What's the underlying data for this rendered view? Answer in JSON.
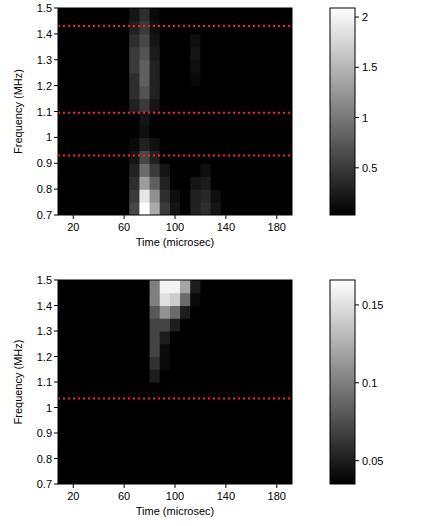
{
  "chart_data": [
    {
      "type": "heatmap",
      "xlabel": "Time (microsec)",
      "ylabel": "Frequency (MHz)",
      "x": [
        12,
        20,
        28,
        36,
        44,
        52,
        60,
        68,
        76,
        84,
        92,
        100,
        108,
        116,
        124,
        132,
        140,
        148,
        156,
        164,
        172,
        180,
        188
      ],
      "y": [
        0.725,
        0.775,
        0.825,
        0.875,
        0.925,
        0.975,
        1.025,
        1.075,
        1.125,
        1.175,
        1.225,
        1.275,
        1.325,
        1.375,
        1.425,
        1.475
      ],
      "cells": [
        [
          0,
          0,
          0,
          0,
          0,
          0,
          0,
          0.6,
          2.09,
          1.4,
          0.5,
          0.2,
          0,
          0.3,
          0.4,
          0.2,
          0,
          0,
          0,
          0,
          0,
          0,
          0
        ],
        [
          0,
          0,
          0,
          0,
          0,
          0,
          0,
          0.5,
          1.9,
          1.2,
          0.4,
          0.15,
          0,
          0.3,
          0.35,
          0.15,
          0,
          0,
          0,
          0,
          0,
          0,
          0
        ],
        [
          0,
          0,
          0,
          0,
          0,
          0,
          0,
          0.4,
          1.3,
          0.8,
          0.3,
          0,
          0,
          0.2,
          0.25,
          0,
          0,
          0,
          0,
          0,
          0,
          0,
          0
        ],
        [
          0,
          0,
          0,
          0,
          0,
          0,
          0,
          0.3,
          0.9,
          0.5,
          0.2,
          0,
          0,
          0,
          0.15,
          0,
          0,
          0,
          0,
          0,
          0,
          0,
          0
        ],
        [
          0,
          0,
          0,
          0,
          0,
          0,
          0,
          0.2,
          0.6,
          0.3,
          0,
          0,
          0,
          0,
          0,
          0,
          0,
          0,
          0,
          0,
          0,
          0,
          0
        ],
        [
          0,
          0,
          0,
          0,
          0,
          0,
          0,
          0.1,
          0.3,
          0.15,
          0,
          0,
          0,
          0,
          0,
          0,
          0,
          0,
          0,
          0,
          0,
          0,
          0
        ],
        [
          0,
          0,
          0,
          0,
          0,
          0,
          0,
          0,
          0.15,
          0,
          0,
          0,
          0,
          0,
          0,
          0,
          0,
          0,
          0,
          0,
          0,
          0,
          0
        ],
        [
          0,
          0,
          0,
          0,
          0,
          0,
          0,
          0,
          0.2,
          0,
          0,
          0,
          0,
          0,
          0,
          0,
          0,
          0,
          0,
          0,
          0,
          0,
          0
        ],
        [
          0,
          0,
          0,
          0,
          0,
          0,
          0,
          0.3,
          0.5,
          0.2,
          0,
          0,
          0,
          0,
          0,
          0,
          0,
          0,
          0,
          0,
          0,
          0,
          0
        ],
        [
          0,
          0,
          0,
          0,
          0,
          0,
          0,
          0.4,
          0.7,
          0.3,
          0,
          0,
          0,
          0,
          0,
          0,
          0,
          0,
          0,
          0,
          0,
          0,
          0
        ],
        [
          0,
          0,
          0,
          0,
          0,
          0,
          0,
          0.4,
          0.8,
          0.3,
          0,
          0,
          0,
          0.1,
          0,
          0,
          0,
          0,
          0,
          0,
          0,
          0,
          0
        ],
        [
          0,
          0,
          0,
          0,
          0,
          0,
          0,
          0.5,
          0.8,
          0.3,
          0,
          0,
          0,
          0.15,
          0,
          0,
          0,
          0,
          0,
          0,
          0,
          0,
          0
        ],
        [
          0,
          0,
          0,
          0,
          0,
          0,
          0,
          0.5,
          0.7,
          0.25,
          0,
          0,
          0,
          0.2,
          0,
          0,
          0,
          0,
          0,
          0,
          0,
          0,
          0
        ],
        [
          0,
          0,
          0,
          0,
          0,
          0,
          0,
          0.4,
          0.6,
          0.2,
          0,
          0,
          0,
          0.15,
          0,
          0,
          0,
          0,
          0,
          0,
          0,
          0,
          0
        ],
        [
          0,
          0,
          0,
          0,
          0,
          0,
          0,
          0.3,
          0.5,
          0.15,
          0,
          0,
          0,
          0,
          0,
          0,
          0,
          0,
          0,
          0,
          0,
          0,
          0
        ],
        [
          0,
          0,
          0,
          0,
          0,
          0,
          0,
          0.2,
          0.4,
          0.1,
          0,
          0,
          0,
          0,
          0,
          0,
          0,
          0,
          0,
          0,
          0,
          0,
          0
        ]
      ],
      "xlim": [
        8,
        192
      ],
      "ylim": [
        0.7,
        1.5
      ],
      "xticks": [
        20,
        60,
        100,
        140,
        180
      ],
      "yticks": [
        0.7,
        0.8,
        0.9,
        1,
        1.1,
        1.2,
        1.3,
        1.4,
        1.5
      ],
      "color_range": [
        0.03,
        2.09
      ],
      "color_ticks": [
        0.5,
        1,
        1.5,
        2
      ],
      "hlines": [
        1.43,
        1.095,
        0.93
      ]
    },
    {
      "type": "heatmap",
      "xlabel": "Time (microsec)",
      "ylabel": "Frequency (MHz)",
      "x": [
        12,
        20,
        28,
        36,
        44,
        52,
        60,
        68,
        76,
        84,
        92,
        100,
        108,
        116,
        124,
        132,
        140,
        148,
        156,
        164,
        172,
        180,
        188
      ],
      "y": [
        0.725,
        0.775,
        0.825,
        0.875,
        0.925,
        0.975,
        1.025,
        1.075,
        1.125,
        1.175,
        1.225,
        1.275,
        1.325,
        1.375,
        1.425,
        1.475
      ],
      "cells": [
        [
          0,
          0,
          0,
          0,
          0,
          0,
          0,
          0,
          0,
          0,
          0,
          0,
          0,
          0.02,
          0,
          0,
          0,
          0,
          0,
          0,
          0,
          0,
          0
        ],
        [
          0,
          0,
          0,
          0,
          0,
          0,
          0,
          0,
          0,
          0,
          0,
          0,
          0,
          0,
          0,
          0,
          0,
          0,
          0,
          0,
          0,
          0,
          0
        ],
        [
          0,
          0,
          0,
          0,
          0,
          0,
          0,
          0,
          0,
          0,
          0,
          0,
          0,
          0,
          0,
          0,
          0,
          0,
          0,
          0,
          0,
          0,
          0
        ],
        [
          0,
          0,
          0,
          0,
          0,
          0,
          0,
          0,
          0,
          0,
          0,
          0,
          0,
          0,
          0,
          0,
          0,
          0,
          0,
          0,
          0,
          0,
          0
        ],
        [
          0,
          0,
          0,
          0,
          0,
          0,
          0,
          0,
          0,
          0,
          0,
          0,
          0,
          0,
          0,
          0,
          0,
          0,
          0,
          0,
          0,
          0,
          0
        ],
        [
          0,
          0,
          0,
          0,
          0,
          0,
          0,
          0,
          0,
          0,
          0,
          0,
          0,
          0,
          0,
          0,
          0,
          0,
          0,
          0,
          0,
          0,
          0
        ],
        [
          0,
          0,
          0,
          0,
          0,
          0,
          0,
          0,
          0,
          0,
          0,
          0,
          0,
          0,
          0,
          0,
          0,
          0,
          0,
          0,
          0,
          0,
          0
        ],
        [
          0,
          0,
          0,
          0,
          0,
          0,
          0,
          0,
          0,
          0.02,
          0.02,
          0,
          0,
          0,
          0,
          0,
          0,
          0,
          0,
          0,
          0,
          0,
          0
        ],
        [
          0,
          0,
          0,
          0,
          0,
          0,
          0,
          0,
          0,
          0.05,
          0.03,
          0,
          0,
          0,
          0,
          0,
          0,
          0,
          0,
          0.02,
          0,
          0,
          0
        ],
        [
          0,
          0,
          0,
          0,
          0,
          0,
          0,
          0,
          0,
          0.06,
          0.04,
          0,
          0,
          0,
          0,
          0,
          0,
          0.02,
          0,
          0,
          0,
          0,
          0
        ],
        [
          0,
          0,
          0,
          0,
          0,
          0,
          0,
          0,
          0,
          0.07,
          0.04,
          0.02,
          0,
          0,
          0,
          0,
          0,
          0.02,
          0,
          0,
          0,
          0,
          0
        ],
        [
          0,
          0,
          0,
          0,
          0,
          0,
          0,
          0,
          0,
          0.07,
          0.05,
          0.03,
          0,
          0,
          0,
          0,
          0.02,
          0,
          0,
          0,
          0,
          0,
          0
        ],
        [
          0,
          0,
          0,
          0,
          0,
          0,
          0,
          0,
          0,
          0.07,
          0.07,
          0.05,
          0.03,
          0,
          0,
          0,
          0.02,
          0,
          0,
          0,
          0,
          0,
          0
        ],
        [
          0,
          0,
          0,
          0,
          0,
          0,
          0,
          0,
          0,
          0.08,
          0.11,
          0.09,
          0.05,
          0.03,
          0,
          0,
          0,
          0,
          0,
          0,
          0,
          0,
          0
        ],
        [
          0,
          0,
          0,
          0,
          0,
          0,
          0,
          0,
          0,
          0.1,
          0.15,
          0.14,
          0.09,
          0.04,
          0.02,
          0,
          0,
          0,
          0,
          0,
          0,
          0,
          0
        ],
        [
          0,
          0,
          0,
          0,
          0,
          0,
          0,
          0,
          0,
          0.1,
          0.16,
          0.16,
          0.12,
          0.05,
          0.03,
          0,
          0,
          0,
          0,
          0,
          0,
          0,
          0
        ]
      ],
      "xlim": [
        8,
        192
      ],
      "ylim": [
        0.7,
        1.5
      ],
      "xticks": [
        20,
        60,
        100,
        140,
        180
      ],
      "yticks": [
        0.7,
        0.8,
        0.9,
        1,
        1.1,
        1.2,
        1.3,
        1.4,
        1.5
      ],
      "color_range": [
        0.035,
        0.166
      ],
      "color_ticks": [
        0.05,
        0.1,
        0.15
      ],
      "hlines": [
        1.035
      ]
    }
  ]
}
